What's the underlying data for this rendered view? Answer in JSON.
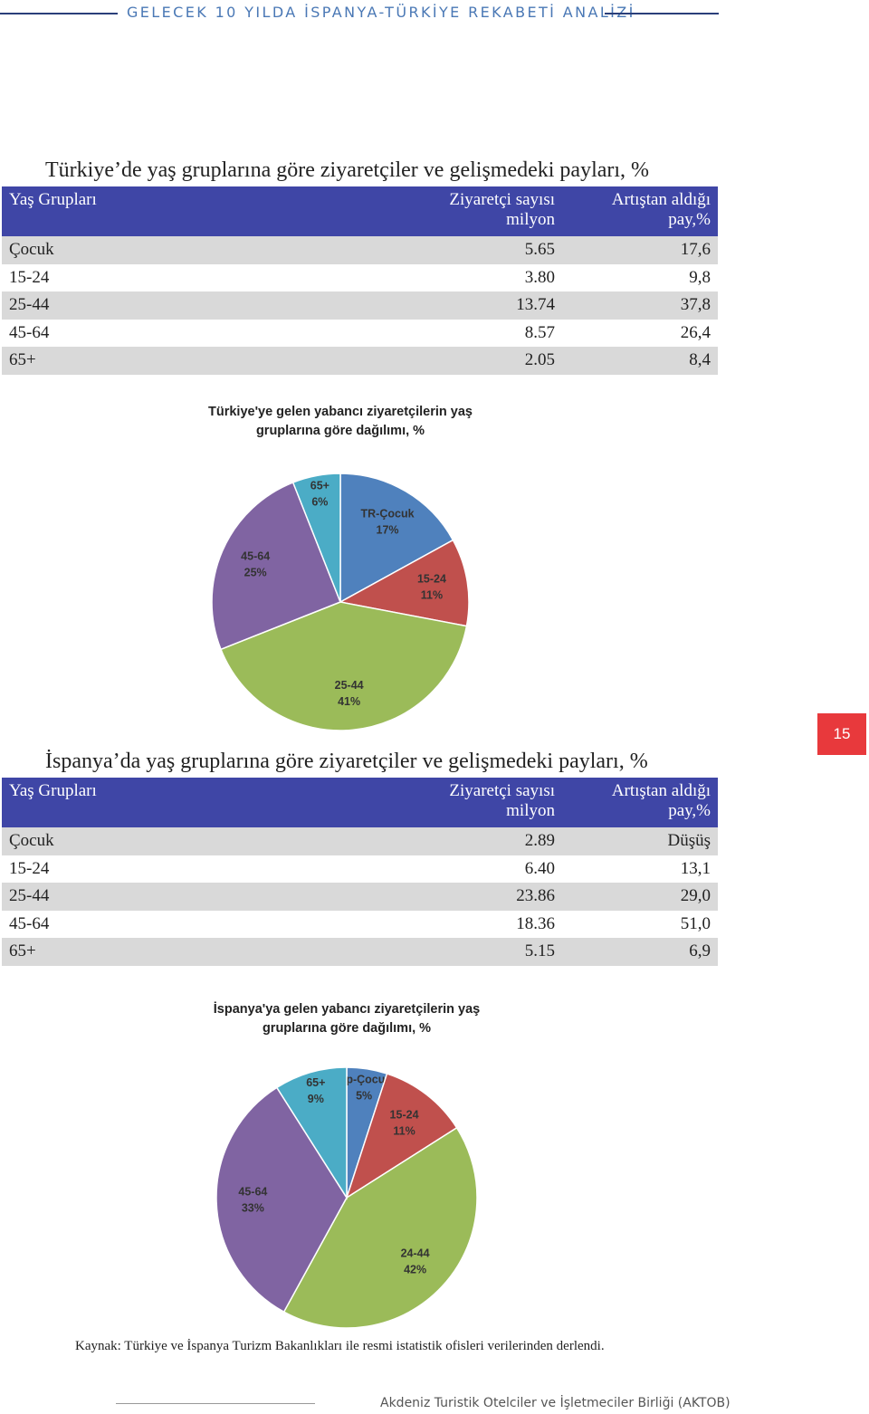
{
  "header": {
    "title": "GELECEK 10 YILDA İSPANYA-TÜRKİYE REKABETİ ANALİZİ"
  },
  "page_number": "15",
  "tables": [
    {
      "title": "Türkiye’de yaş gruplarına göre ziyaretçiler ve gelişmedeki payları, %",
      "columns": [
        "Yaş Grupları",
        "Ziyaretçi sayısı milyon",
        "Artıştan aldığı pay,%"
      ],
      "rows": [
        [
          "Çocuk",
          "5.65",
          "17,6"
        ],
        [
          "15-24",
          "3.80",
          "9,8"
        ],
        [
          "25-44",
          "13.74",
          "37,8"
        ],
        [
          "45-64",
          "8.57",
          "26,4"
        ],
        [
          "65+",
          "2.05",
          "8,4"
        ]
      ]
    },
    {
      "title": "İspanya’da yaş gruplarına göre ziyaretçiler ve gelişmedeki payları, %",
      "columns": [
        "Yaş Grupları",
        "Ziyaretçi sayısı milyon",
        "Artıştan aldığı pay,%"
      ],
      "rows": [
        [
          "Çocuk",
          "2.89",
          "Düşüş"
        ],
        [
          "15-24",
          "6.40",
          "13,1"
        ],
        [
          "25-44",
          "23.86",
          "29,0"
        ],
        [
          "45-64",
          "18.36",
          "51,0"
        ],
        [
          "65+",
          "5.15",
          "6,9"
        ]
      ]
    }
  ],
  "chart_data": [
    {
      "type": "pie",
      "title": "Türkiye'ye gelen yabancı ziyaretçilerin yaş gruplarına göre dağılımı, %",
      "categories": [
        "TR-Çocuk",
        "15-24",
        "25-44",
        "45-64",
        "65+"
      ],
      "values": [
        17,
        11,
        41,
        25,
        6
      ],
      "value_labels": [
        "17%",
        "11%",
        "41%",
        "25%",
        "6%"
      ],
      "colors": [
        "#4f81bd",
        "#c0504d",
        "#9bbb59",
        "#8064a2",
        "#4bacc6"
      ]
    },
    {
      "type": "pie",
      "title": "İspanya'ya gelen yabancı ziyaretçilerin yaş gruplarına göre dağılımı, %",
      "categories": [
        "İsp-Çocuk",
        "15-24",
        "24-44",
        "45-64",
        "65+"
      ],
      "values": [
        5,
        11,
        42,
        33,
        9
      ],
      "value_labels": [
        "5%",
        "11%",
        "42%",
        "33%",
        "9%"
      ],
      "colors": [
        "#4f81bd",
        "#c0504d",
        "#9bbb59",
        "#8064a2",
        "#4bacc6"
      ]
    }
  ],
  "source": "Kaynak: Türkiye ve İspanya Turizm Bakanlıkları ile resmi istatistik ofisleri verilerinden derlendi.",
  "footer": "Akdeniz Turistik Otelciler ve İşletmeciler Birliği (AKTOB)"
}
